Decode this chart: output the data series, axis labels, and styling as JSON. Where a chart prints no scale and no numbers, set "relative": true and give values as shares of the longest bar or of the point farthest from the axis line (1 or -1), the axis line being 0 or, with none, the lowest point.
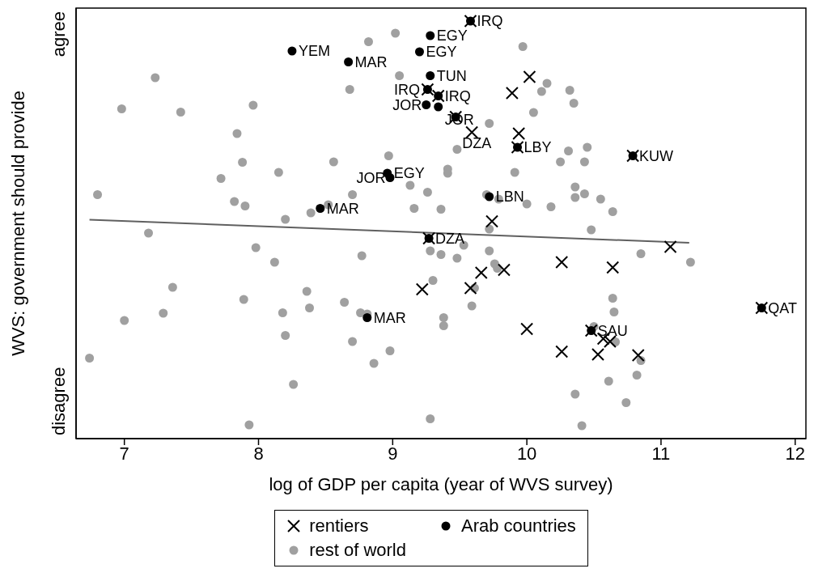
{
  "chart_data": {
    "type": "scatter",
    "relative": true,
    "xlabel": "log of GDP per capita (year of WVS survey)",
    "ylabel": "WVS: government should provide",
    "xlim": [
      6.64,
      12.08
    ],
    "xticks": [
      7,
      8,
      9,
      10,
      11,
      12
    ],
    "legend": "bottom",
    "series": [
      {
        "name": "rest of world",
        "marker": "circle",
        "color": "#a0a0a0",
        "x": [
          7.23,
          6.98,
          7.42,
          7.96,
          7.84,
          7.88,
          8.15,
          7.72,
          6.8,
          7.82,
          7.9,
          8.2,
          7.18,
          7.98,
          8.12,
          7.36,
          7.89,
          7.29,
          7.0,
          8.18,
          8.2,
          6.74,
          7.93,
          9.02,
          8.82,
          9.97,
          9.05,
          8.68,
          10.11,
          10.32,
          10.15,
          10.35,
          10.05,
          9.72,
          9.48,
          8.97,
          8.56,
          9.41,
          9.41,
          9.91,
          9.13,
          9.26,
          8.7,
          8.52,
          8.39,
          9.16,
          9.36,
          9.7,
          9.79,
          10.0,
          9.72,
          10.31,
          10.45,
          10.25,
          10.43,
          10.36,
          10.36,
          10.43,
          10.55,
          10.64,
          10.18,
          10.48,
          9.53,
          9.28,
          9.36,
          8.77,
          9.48,
          9.72,
          9.76,
          9.78,
          9.3,
          8.36,
          8.38,
          8.64,
          8.76,
          8.81,
          8.7,
          9.38,
          9.38,
          9.61,
          9.59,
          8.98,
          8.86,
          8.26,
          9.28,
          10.85,
          11.22,
          10.64,
          10.65,
          10.5,
          10.66,
          10.85,
          10.82,
          10.61,
          10.36,
          10.74,
          10.41
        ],
        "values": [
          0.86,
          0.783,
          0.775,
          0.792,
          0.722,
          0.651,
          0.626,
          0.611,
          0.571,
          0.554,
          0.543,
          0.51,
          0.476,
          0.44,
          0.404,
          0.342,
          0.312,
          0.278,
          0.26,
          0.279,
          0.223,
          0.167,
          0.002,
          0.97,
          0.949,
          0.937,
          0.865,
          0.831,
          0.826,
          0.829,
          0.846,
          0.797,
          0.774,
          0.747,
          0.683,
          0.667,
          0.652,
          0.634,
          0.624,
          0.626,
          0.594,
          0.577,
          0.571,
          0.546,
          0.526,
          0.537,
          0.535,
          0.571,
          0.56,
          0.548,
          0.486,
          0.679,
          0.688,
          0.652,
          0.652,
          0.59,
          0.564,
          0.573,
          0.56,
          0.529,
          0.541,
          0.484,
          0.446,
          0.432,
          0.423,
          0.42,
          0.414,
          0.432,
          0.4,
          0.389,
          0.359,
          0.332,
          0.291,
          0.305,
          0.279,
          0.276,
          0.208,
          0.267,
          0.247,
          0.34,
          0.296,
          0.185,
          0.154,
          0.102,
          0.017,
          0.425,
          0.404,
          0.315,
          0.281,
          0.245,
          0.207,
          0.161,
          0.125,
          0.11,
          0.078,
          0.057,
          0.0
        ]
      },
      {
        "type": "line",
        "marker": "none",
        "line_style": "solid",
        "color": "#606060",
        "x": [
          6.74,
          11.21
        ],
        "values": [
          0.509,
          0.452
        ]
      },
      {
        "name": "Arab countries",
        "marker": "circle",
        "color": "#000000",
        "x": [
          9.58,
          9.28,
          8.25,
          9.2,
          8.67,
          9.28,
          9.26,
          9.34,
          9.25,
          9.34,
          9.47,
          9.93,
          10.79,
          8.96,
          8.98,
          9.72,
          8.46,
          9.27,
          8.81,
          10.48,
          11.75
        ],
        "values": [
          1.0,
          0.964,
          0.926,
          0.924,
          0.899,
          0.865,
          0.831,
          0.815,
          0.793,
          0.788,
          0.763,
          0.688,
          0.667,
          0.624,
          0.613,
          0.566,
          0.537,
          0.463,
          0.267,
          0.235,
          0.291
        ]
      },
      {
        "name": "rentiers",
        "marker": "cross",
        "color": "#000000",
        "x": [
          10.02,
          9.89,
          9.59,
          9.94,
          9.74,
          9.22,
          9.58,
          9.66,
          9.83,
          10.0,
          10.26,
          10.64,
          11.07,
          10.26,
          10.53,
          10.57,
          10.62,
          10.83,
          9.58,
          9.26,
          9.34,
          9.47,
          9.93,
          10.79,
          9.27,
          10.48,
          11.75
        ],
        "values": [
          0.862,
          0.822,
          0.725,
          0.722,
          0.505,
          0.337,
          0.34,
          0.378,
          0.385,
          0.239,
          0.404,
          0.391,
          0.442,
          0.183,
          0.176,
          0.215,
          0.208,
          0.174,
          1.0,
          0.831,
          0.815,
          0.763,
          0.688,
          0.667,
          0.463,
          0.235,
          0.291
        ]
      }
    ],
    "annotations": [
      "agree",
      "disagree",
      {
        "text": "IRQ",
        "x": 9.58,
        "y": 1.0
      },
      {
        "text": "EGY",
        "x": 9.28,
        "y": 0.964
      },
      {
        "text": "YEM",
        "x": 8.25,
        "y": 0.926
      },
      {
        "text": "EGY",
        "x": 9.2,
        "y": 0.924
      },
      {
        "text": "MAR",
        "x": 8.67,
        "y": 0.899
      },
      {
        "text": "TUN",
        "x": 9.28,
        "y": 0.865
      },
      {
        "text": "IRQ",
        "x": 9.26,
        "y": 0.831
      },
      {
        "text": "IRQ",
        "x": 9.34,
        "y": 0.815
      },
      {
        "text": "JOR",
        "x": 9.25,
        "y": 0.793
      },
      {
        "text": "JOR",
        "x": 9.34,
        "y": 0.788
      },
      {
        "text": "DZA",
        "x": 9.47,
        "y": 0.763
      },
      {
        "text": "LBY",
        "x": 9.93,
        "y": 0.688
      },
      {
        "text": "KUW",
        "x": 10.79,
        "y": 0.667
      },
      {
        "text": "EGY",
        "x": 8.96,
        "y": 0.624
      },
      {
        "text": "JOR",
        "x": 8.98,
        "y": 0.613
      },
      {
        "text": "LBN",
        "x": 9.72,
        "y": 0.566
      },
      {
        "text": "MAR",
        "x": 8.46,
        "y": 0.537
      },
      {
        "text": "DZA",
        "x": 9.27,
        "y": 0.463
      },
      {
        "text": "MAR",
        "x": 8.81,
        "y": 0.267
      },
      {
        "text": "SAU",
        "x": 10.48,
        "y": 0.235
      },
      {
        "text": "QAT",
        "x": 11.75,
        "y": 0.291
      }
    ]
  }
}
